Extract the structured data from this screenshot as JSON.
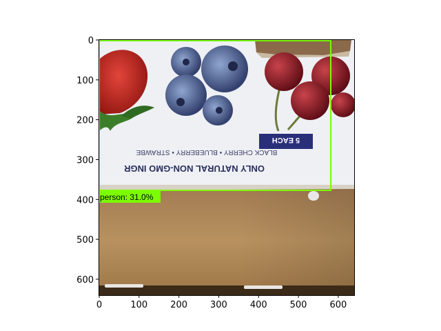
{
  "figure": {
    "x_ticks": [
      "0",
      "100",
      "200",
      "300",
      "400",
      "500",
      "600"
    ],
    "y_ticks": [
      "0",
      "100",
      "200",
      "300",
      "400",
      "500",
      "600"
    ]
  },
  "image": {
    "package_text": {
      "line1": "ONLY NATURAL NON-GMO INGR",
      "line2": "BLACK CHERRY • BLUEBERRY • STRAWBE",
      "badge": "5 EACH"
    }
  },
  "detection": {
    "label": "person: 31.0%",
    "color": "#7cfc00"
  },
  "colors": {
    "box_top": "#eef0f4",
    "cardboard": "#b48a5c",
    "cardboard_dark": "#3b2a18",
    "badge_bg": "#2a2f7a"
  }
}
